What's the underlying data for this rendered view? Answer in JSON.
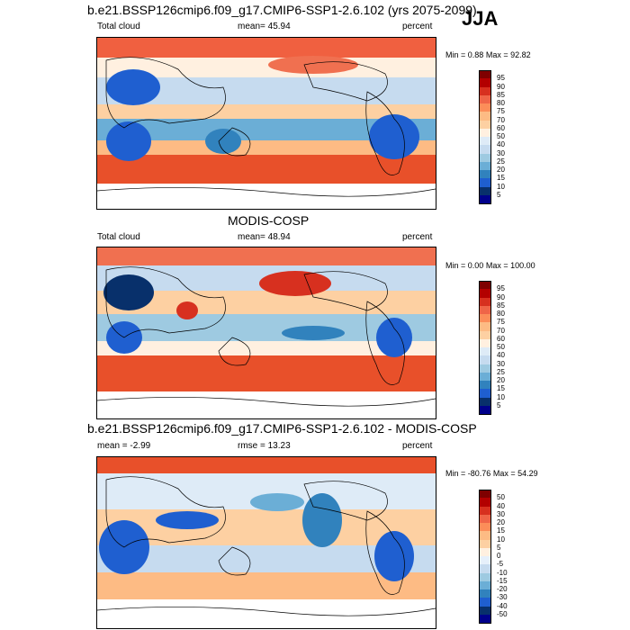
{
  "season": "JJA",
  "panels": [
    {
      "id": "model",
      "title": "b.e21.BSSP126cmip6.f09_g17.CMIP6-SSP1-2.6.102 (yrs 2075-2099)",
      "left_label": "Total cloud",
      "stat_label": "mean=",
      "stat_value": "45.94",
      "units": "percent",
      "minmax": {
        "min_label": "Min =",
        "min": "0.88",
        "max_label": "Max =",
        "max": "92.82"
      },
      "colorbar": {
        "levels": [
          "95",
          "90",
          "85",
          "80",
          "75",
          "70",
          "60",
          "50",
          "40",
          "30",
          "25",
          "20",
          "15",
          "10",
          "5"
        ]
      }
    },
    {
      "id": "obs",
      "title": "MODIS-COSP",
      "left_label": "Total cloud",
      "stat_label": "mean=",
      "stat_value": "48.94",
      "units": "percent",
      "minmax": {
        "min_label": "Min =",
        "min": "0.00",
        "max_label": "Max =",
        "max": "100.00"
      },
      "colorbar": {
        "levels": [
          "95",
          "90",
          "85",
          "80",
          "75",
          "70",
          "60",
          "50",
          "40",
          "30",
          "25",
          "20",
          "15",
          "10",
          "5"
        ]
      }
    },
    {
      "id": "diff",
      "title": "b.e21.BSSP126cmip6.f09_g17.CMIP6-SSP1-2.6.102 - MODIS-COSP",
      "left_label": "mean =  -2.99",
      "stat_label": "rmse =",
      "stat_value": "13.23",
      "units": "percent",
      "minmax": {
        "min_label": "Min =",
        "min": "-80.76",
        "max_label": "Max =",
        "max": "54.29"
      },
      "colorbar": {
        "levels": [
          "50",
          "40",
          "30",
          "20",
          "15",
          "10",
          "5",
          "0",
          "-5",
          "-10",
          "-15",
          "-20",
          "-30",
          "-40",
          "-50"
        ]
      }
    }
  ],
  "colors": {
    "sequential": [
      "#7f0000",
      "#b30000",
      "#d7301f",
      "#ef6548",
      "#fc8d59",
      "#fdbb84",
      "#fdd0a2",
      "#fff0e0",
      "#deebf7",
      "#c6dbef",
      "#9ecae1",
      "#6baed6",
      "#3182bd",
      "#1f5fd0",
      "#08306b",
      "#00008b"
    ],
    "diverging": [
      "#7f0000",
      "#b30000",
      "#d7301f",
      "#ef6548",
      "#fc8d59",
      "#fdbb84",
      "#fdd0a2",
      "#fff0e0",
      "#e6f0fb",
      "#c6dbef",
      "#9ecae1",
      "#6baed6",
      "#3182bd",
      "#1f5fd0",
      "#08306b",
      "#00008b"
    ]
  }
}
